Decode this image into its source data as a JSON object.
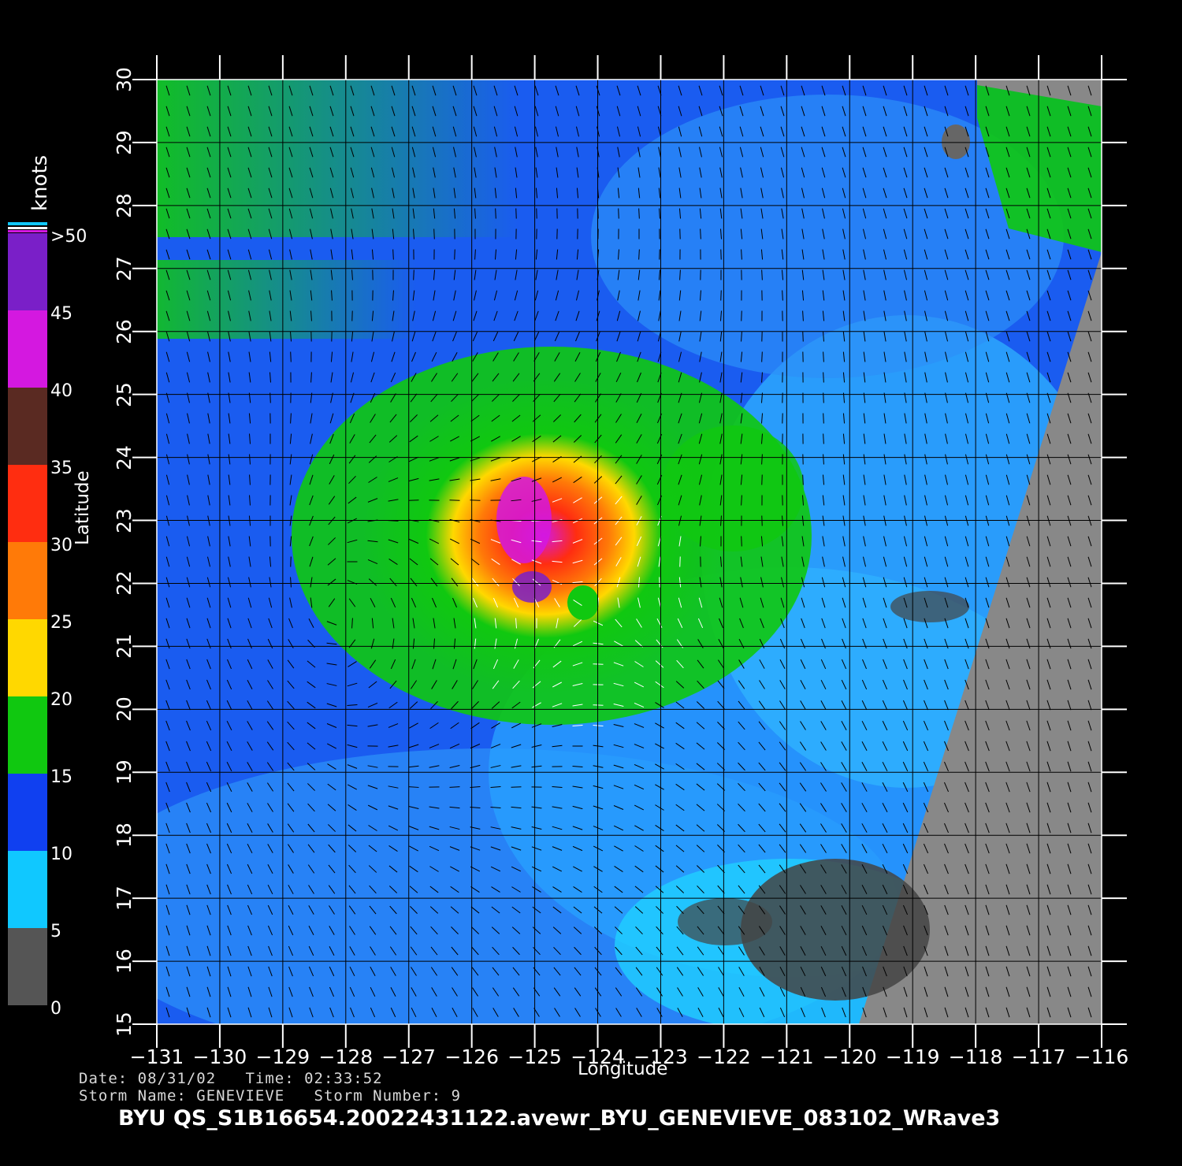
{
  "header": {
    "units_label": "knots"
  },
  "axes": {
    "xlabel": "Longitude",
    "ylabel": "Latitude",
    "x_ticks": [
      "−131",
      "−130",
      "−129",
      "−128",
      "−127",
      "−126",
      "−125",
      "−124",
      "−123",
      "−122",
      "−121",
      "−120",
      "−119",
      "−118",
      "−117",
      "−116"
    ],
    "y_ticks": [
      "15",
      "16",
      "17",
      "18",
      "19",
      "20",
      "21",
      "22",
      "23",
      "24",
      "25",
      "26",
      "27",
      "28",
      "29",
      "30"
    ],
    "xlim": [
      -131,
      -116
    ],
    "ylim": [
      15,
      30
    ]
  },
  "colorbar": {
    "labels": [
      ">50",
      "45",
      "40",
      "35",
      "30",
      "25",
      "20",
      "15",
      "10",
      "5",
      "0"
    ],
    "segments": [
      {
        "range": "45-50",
        "color": "#7a1fc8"
      },
      {
        "range": "40-45",
        "color": "#d418e0"
      },
      {
        "range": "35-40",
        "color": "#5a2a22"
      },
      {
        "range": "30-35",
        "color": "#ff2d10"
      },
      {
        "range": "25-30",
        "color": "#ff7a08"
      },
      {
        "range": "20-25",
        "color": "#ffd800"
      },
      {
        "range": "15-20",
        "color": "#10c810"
      },
      {
        "range": "10-15",
        "color": "#1040f0"
      },
      {
        "range": "5-10",
        "color": "#10c8ff"
      },
      {
        "range": "0-5",
        "color": "#555555"
      }
    ]
  },
  "map": {
    "storm_center": {
      "lon": -124.2,
      "lat": 21.6
    },
    "land_color": "#888888",
    "grid_color": "#000000"
  },
  "info": {
    "line1": "Date: 08/31/02   Time: 02:33:52",
    "line2": "Storm Name: GENEVIEVE   Storm Number: 9",
    "title": "BYU QS_S1B16654.20022431122.avewr_BYU_GENEVIEVE_083102_WRave3"
  }
}
